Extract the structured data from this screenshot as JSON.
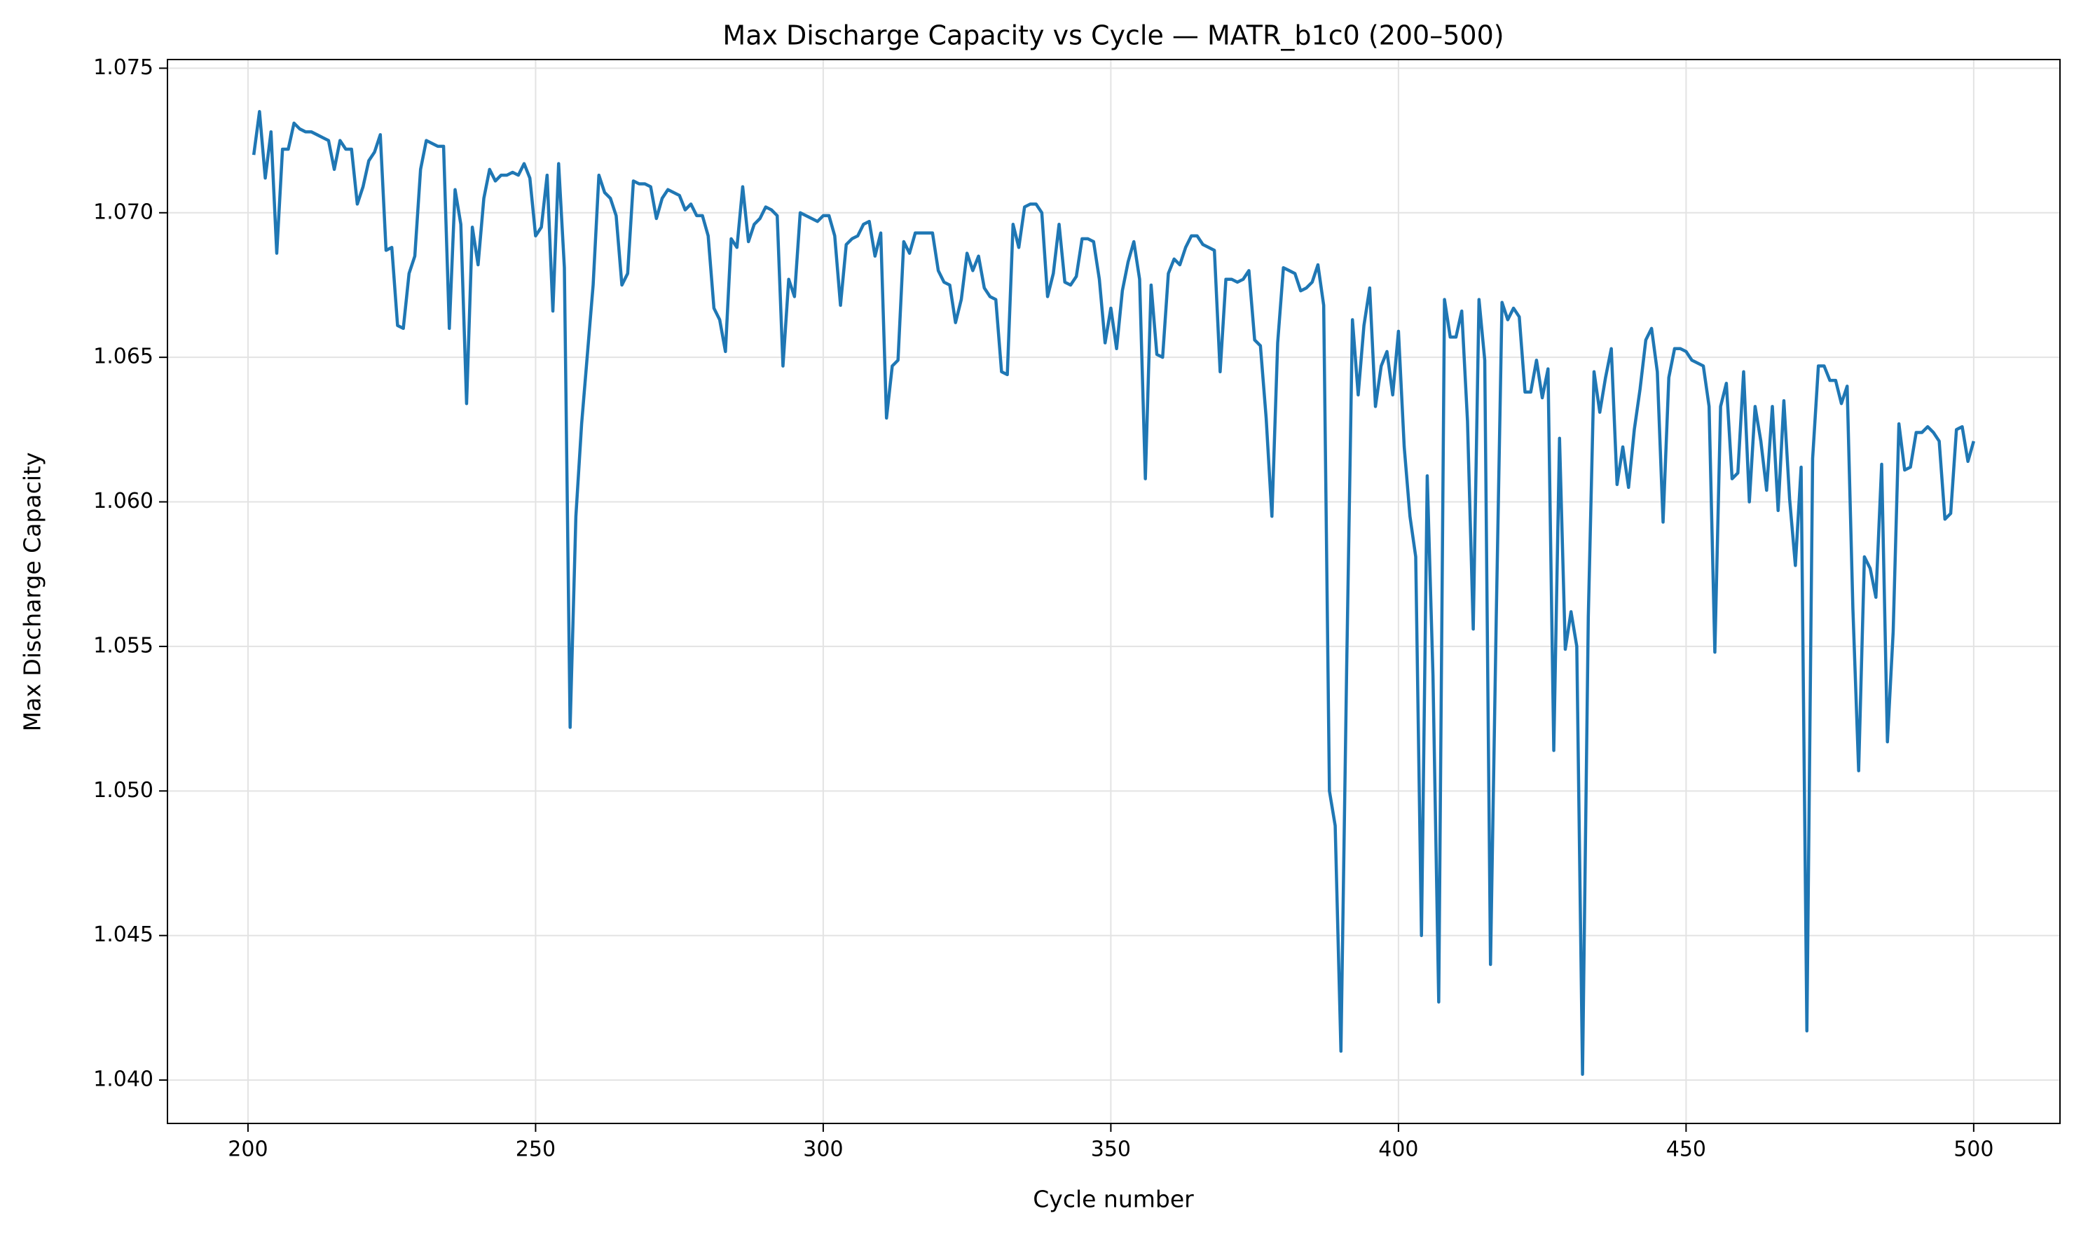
{
  "chart_data": {
    "type": "line",
    "title": "Max Discharge Capacity vs Cycle — MATR_b1c0 (200–500)",
    "x_label": "Cycle number",
    "y_label": "Max Discharge Capacity",
    "xlim": [
      186,
      515
    ],
    "ylim": [
      1.0385,
      1.0753
    ],
    "xticks": [
      200,
      250,
      300,
      350,
      400,
      450,
      500
    ],
    "yticks": [
      {
        "value": 1.04,
        "label": "1.040"
      },
      1.045,
      {
        "value": 1.05,
        "label": "1.050"
      },
      1.055,
      {
        "value": 1.06,
        "label": "1.060"
      },
      1.065,
      {
        "value": 1.07,
        "label": "1.070"
      },
      1.075
    ],
    "grid": true,
    "x": [
      201,
      202,
      203,
      204,
      205,
      206,
      207,
      208,
      209,
      210,
      211,
      212,
      213,
      214,
      215,
      216,
      217,
      218,
      219,
      220,
      221,
      222,
      223,
      224,
      225,
      226,
      227,
      228,
      229,
      230,
      231,
      232,
      233,
      234,
      235,
      236,
      237,
      238,
      239,
      240,
      241,
      242,
      243,
      244,
      245,
      246,
      247,
      248,
      249,
      250,
      251,
      252,
      253,
      254,
      255,
      256,
      257,
      258,
      259,
      260,
      261,
      262,
      263,
      264,
      265,
      266,
      267,
      268,
      269,
      270,
      271,
      272,
      273,
      274,
      275,
      276,
      277,
      278,
      279,
      280,
      281,
      282,
      283,
      284,
      285,
      286,
      287,
      288,
      289,
      290,
      291,
      292,
      293,
      294,
      295,
      296,
      297,
      298,
      299,
      300,
      301,
      302,
      303,
      304,
      305,
      306,
      307,
      308,
      309,
      310,
      311,
      312,
      313,
      314,
      315,
      316,
      317,
      318,
      319,
      320,
      321,
      322,
      323,
      324,
      325,
      326,
      327,
      328,
      329,
      330,
      331,
      332,
      333,
      334,
      335,
      336,
      337,
      338,
      339,
      340,
      341,
      342,
      343,
      344,
      345,
      346,
      347,
      348,
      349,
      350,
      351,
      352,
      353,
      354,
      355,
      356,
      357,
      358,
      359,
      360,
      361,
      362,
      363,
      364,
      365,
      366,
      367,
      368,
      369,
      370,
      371,
      372,
      373,
      374,
      375,
      376,
      377,
      378,
      379,
      380,
      381,
      382,
      383,
      384,
      385,
      386,
      387,
      388,
      389,
      390,
      391,
      392,
      393,
      394,
      395,
      396,
      397,
      398,
      399,
      400,
      401,
      402,
      403,
      404,
      405,
      406,
      407,
      408,
      409,
      410,
      411,
      412,
      413,
      414,
      415,
      416,
      417,
      418,
      419,
      420,
      421,
      422,
      423,
      424,
      425,
      426,
      427,
      428,
      429,
      430,
      431,
      432,
      433,
      434,
      435,
      436,
      437,
      438,
      439,
      440,
      441,
      442,
      443,
      444,
      445,
      446,
      447,
      448,
      449,
      450,
      451,
      452,
      453,
      454,
      455,
      456,
      457,
      458,
      459,
      460,
      461,
      462,
      463,
      464,
      465,
      466,
      467,
      468,
      469,
      470,
      471,
      472,
      473,
      474,
      475,
      476,
      477,
      478,
      479,
      480,
      481,
      482,
      483,
      484,
      485,
      486,
      487,
      488,
      489,
      490,
      491,
      492,
      493,
      494,
      495,
      496,
      497,
      498,
      499,
      500
    ],
    "series": [
      {
        "color": "#1f77b4",
        "values": [
          1.072,
          1.0735,
          1.0712,
          1.0728,
          1.0686,
          1.0722,
          1.0722,
          1.0731,
          1.0729,
          1.0728,
          1.0728,
          1.0727,
          1.0726,
          1.0725,
          1.0715,
          1.0725,
          1.0722,
          1.0722,
          1.0703,
          1.0709,
          1.0718,
          1.0721,
          1.0727,
          1.0687,
          1.0688,
          1.0661,
          1.066,
          1.0679,
          1.0685,
          1.0715,
          1.0725,
          1.0724,
          1.0723,
          1.0723,
          1.066,
          1.0708,
          1.0696,
          1.0634,
          1.0695,
          1.0682,
          1.0705,
          1.0715,
          1.0711,
          1.0713,
          1.0713,
          1.0714,
          1.0713,
          1.0717,
          1.0712,
          1.0692,
          1.0695,
          1.0713,
          1.0666,
          1.0717,
          1.0681,
          1.0522,
          1.0595,
          1.0627,
          1.0651,
          1.0675,
          1.0713,
          1.0707,
          1.0705,
          1.0699,
          1.0675,
          1.0679,
          1.0711,
          1.071,
          1.071,
          1.0709,
          1.0698,
          1.0705,
          1.0708,
          1.0707,
          1.0706,
          1.0701,
          1.0703,
          1.0699,
          1.0699,
          1.0692,
          1.0667,
          1.0663,
          1.0652,
          1.0691,
          1.0688,
          1.0709,
          1.069,
          1.0696,
          1.0698,
          1.0702,
          1.0701,
          1.0699,
          1.0647,
          1.0677,
          1.0671,
          1.07,
          1.0699,
          1.0698,
          1.0697,
          1.0699,
          1.0699,
          1.0692,
          1.0668,
          1.0689,
          1.0691,
          1.0692,
          1.0696,
          1.0697,
          1.0685,
          1.0693,
          1.0629,
          1.0647,
          1.0649,
          1.069,
          1.0686,
          1.0693,
          1.0693,
          1.0693,
          1.0693,
          1.068,
          1.0676,
          1.0675,
          1.0662,
          1.067,
          1.0686,
          1.068,
          1.0685,
          1.0674,
          1.0671,
          1.067,
          1.0645,
          1.0644,
          1.0696,
          1.0688,
          1.0702,
          1.0703,
          1.0703,
          1.07,
          1.0671,
          1.0679,
          1.0696,
          1.0676,
          1.0675,
          1.0678,
          1.0691,
          1.0691,
          1.069,
          1.0677,
          1.0655,
          1.0667,
          1.0653,
          1.0673,
          1.0683,
          1.069,
          1.0677,
          1.0608,
          1.0675,
          1.0651,
          1.065,
          1.0679,
          1.0684,
          1.0682,
          1.0688,
          1.0692,
          1.0692,
          1.0689,
          1.0688,
          1.0687,
          1.0645,
          1.0677,
          1.0677,
          1.0676,
          1.0677,
          1.068,
          1.0656,
          1.0654,
          1.0629,
          1.0595,
          1.0655,
          1.0681,
          1.068,
          1.0679,
          1.0673,
          1.0674,
          1.0676,
          1.0682,
          1.0668,
          1.05,
          1.0488,
          1.041,
          1.0543,
          1.0663,
          1.0637,
          1.0661,
          1.0674,
          1.0633,
          1.0647,
          1.0652,
          1.0637,
          1.0659,
          1.0619,
          1.0595,
          1.0581,
          1.045,
          1.0609,
          1.054,
          1.0427,
          1.067,
          1.0657,
          1.0657,
          1.0666,
          1.0628,
          1.0556,
          1.067,
          1.0649,
          1.044,
          1.056,
          1.0669,
          1.0663,
          1.0667,
          1.0664,
          1.0638,
          1.0638,
          1.0649,
          1.0636,
          1.0646,
          1.0514,
          1.0622,
          1.0549,
          1.0562,
          1.055,
          1.0402,
          1.056,
          1.0645,
          1.0631,
          1.0643,
          1.0653,
          1.0606,
          1.0619,
          1.0605,
          1.0625,
          1.0639,
          1.0656,
          1.066,
          1.0645,
          1.0593,
          1.0643,
          1.0653,
          1.0653,
          1.0652,
          1.0649,
          1.0648,
          1.0647,
          1.0633,
          1.0548,
          1.0633,
          1.0641,
          1.0608,
          1.061,
          1.0645,
          1.06,
          1.0633,
          1.0621,
          1.0604,
          1.0633,
          1.0597,
          1.0635,
          1.0601,
          1.0578,
          1.0612,
          1.0417,
          1.0615,
          1.0647,
          1.0647,
          1.0642,
          1.0642,
          1.0634,
          1.064,
          1.0563,
          1.0507,
          1.0581,
          1.0577,
          1.0567,
          1.0613,
          1.0517,
          1.0555,
          1.0627,
          1.0611,
          1.0612,
          1.0624,
          1.0624,
          1.0626,
          1.0624,
          1.0621,
          1.0594,
          1.0596,
          1.0625,
          1.0626,
          1.0614,
          1.0621
        ]
      }
    ]
  }
}
